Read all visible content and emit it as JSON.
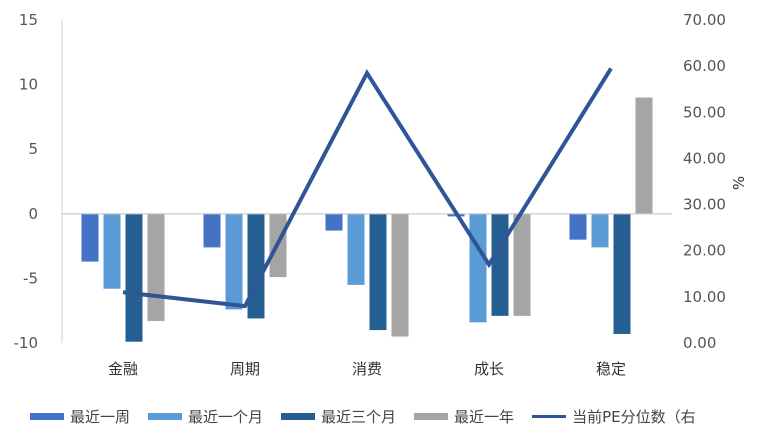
{
  "chart_data": {
    "type": "bar",
    "categories": [
      "金融",
      "周期",
      "消费",
      "成长",
      "稳定"
    ],
    "series": [
      {
        "name": "最近一周",
        "color": "#4472C4",
        "values": [
          -3.7,
          -2.6,
          -1.3,
          -0.2,
          -2.0
        ]
      },
      {
        "name": "最近一个月",
        "color": "#5B9BD5",
        "values": [
          -5.8,
          -7.4,
          -5.5,
          -8.4,
          -2.6
        ]
      },
      {
        "name": "最近三个月",
        "color": "#255E91",
        "values": [
          -9.9,
          -8.1,
          -9.0,
          -7.9,
          -9.3
        ]
      },
      {
        "name": "最近一年",
        "color": "#A5A5A5",
        "values": [
          -8.3,
          -4.9,
          -9.5,
          -7.9,
          9.0
        ]
      }
    ],
    "line_series": {
      "name": "当前PE分位数（右",
      "color": "#2F5597",
      "values": [
        11.0,
        8.0,
        58.5,
        17.0,
        59.5
      ]
    },
    "y_left": {
      "min": -10,
      "max": 15,
      "ticks": [
        "15",
        "10",
        "5",
        "0",
        "-5",
        "-10"
      ]
    },
    "y_right": {
      "min": 0,
      "max": 70,
      "label": "%",
      "ticks": [
        "70.00",
        "60.00",
        "50.00",
        "40.00",
        "30.00",
        "20.00",
        "10.00",
        "0.00"
      ]
    },
    "legend": [
      {
        "label": "最近一周",
        "color": "#4472C4",
        "kind": "bar"
      },
      {
        "label": "最近一个月",
        "color": "#5B9BD5",
        "kind": "bar"
      },
      {
        "label": "最近三个月",
        "color": "#255E91",
        "kind": "bar"
      },
      {
        "label": "最近一年",
        "color": "#A5A5A5",
        "kind": "bar"
      },
      {
        "label": "当前PE分位数（右",
        "color": "#2F5597",
        "kind": "line"
      }
    ],
    "legend_position": "bottom",
    "grid": false
  }
}
